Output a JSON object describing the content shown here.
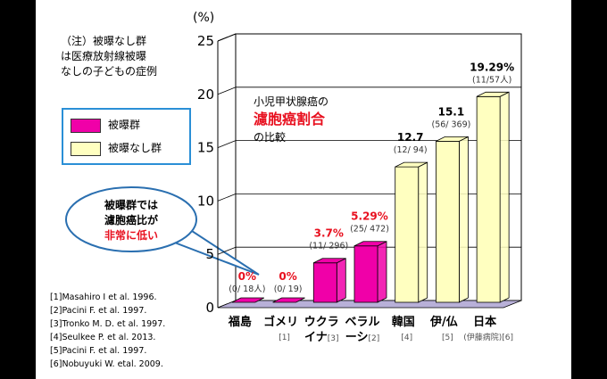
{
  "note": [
    "（注）被曝なし群",
    "は医療放射線被曝",
    "なしの子どもの症例"
  ],
  "legend": [
    {
      "label": "被曝群",
      "color": "#f000a8"
    },
    {
      "label": "被曝なし群",
      "color": "#ffffc0"
    }
  ],
  "chart_title": {
    "line1": "小児甲状腺癌の",
    "line2": "濾胞癌割合",
    "line3": "の比較"
  },
  "callout": {
    "line1": "被曝群では",
    "line2": "濾胞癌比が",
    "line3": "非常に低い"
  },
  "references": [
    "[1]Masahiro I et al. 1996.",
    "[2]Pacini F. et al. 1997.",
    "[3]Tronko M. D. et al. 1997.",
    "[4]Seulkee P. et al. 2013.",
    "[5]Pacini F. et al. 1997.",
    "[6]Nobuyuki W. etal. 2009."
  ],
  "chart_data": {
    "type": "bar",
    "ylabel": "(%)",
    "ylim": [
      0,
      25
    ],
    "yticks": [
      0,
      5,
      10,
      15,
      20,
      25
    ],
    "grid": true,
    "categories": [
      {
        "label": [
          "福島"
        ],
        "ref": ""
      },
      {
        "label": [
          "ゴメリ"
        ],
        "ref": "[1]"
      },
      {
        "label": [
          "ウクラ",
          "イナ"
        ],
        "ref": "[3]"
      },
      {
        "label": [
          "ベラル",
          "ーシ"
        ],
        "ref": "[2]"
      },
      {
        "label": [
          "韓国"
        ],
        "ref": "[4]"
      },
      {
        "label": [
          "伊/仏"
        ],
        "ref": "[5]"
      },
      {
        "label": [
          "日本"
        ],
        "ref": "(伊藤病院)[6]"
      }
    ],
    "values": [
      0,
      0,
      3.7,
      5.29,
      12.7,
      15.1,
      19.29
    ],
    "value_labels": [
      "0%",
      "0%",
      "3.7%",
      "5.29%",
      "12.7",
      "15.1",
      "19.29%"
    ],
    "counts": [
      "(0/ 18人)",
      "(0/ 19)",
      "(11/ 296)",
      "(25/ 472)",
      "(12/ 94)",
      "(56/ 369)",
      "(11/57人)"
    ],
    "groups": [
      "exposed",
      "exposed",
      "exposed",
      "exposed",
      "unexposed",
      "unexposed",
      "unexposed"
    ],
    "colors": {
      "exposed": "#f000a8",
      "unexposed": "#ffffc0",
      "floor": "#b8b0d8",
      "red_label": "#e8101f"
    }
  }
}
